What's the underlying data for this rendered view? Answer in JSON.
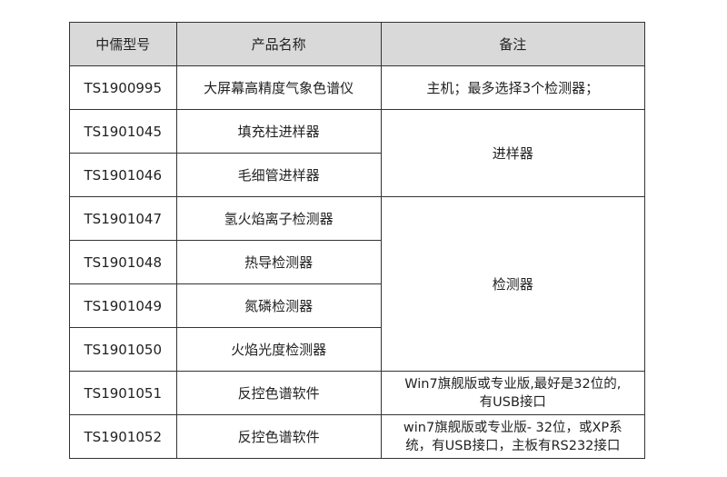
{
  "headers": [
    "中儒型号",
    "产品名称",
    "备注"
  ],
  "rows": [
    {
      "model": "TS1900995",
      "name": "大屏幕高精度气象色谱仪",
      "note": "主机；最多选择3个检测器；"
    },
    {
      "model": "TS1901045",
      "name": "填充柱进样器",
      "note": "进样器"
    },
    {
      "model": "TS1901046",
      "name": "毛细管进样器"
    },
    {
      "model": "TS1901047",
      "name": "氢火焰离子检测器",
      "note": "检测器"
    },
    {
      "model": "TS1901048",
      "name": "热导检测器"
    },
    {
      "model": "TS1901049",
      "name": "氮磷检测器"
    },
    {
      "model": "TS1901050",
      "name": "火焰光度检测器"
    },
    {
      "model": "TS1901051",
      "name": "反控色谱软件",
      "note_lines": [
        "Win7旗舰版或专业版,最好是32位的,",
        "有USB接口"
      ]
    },
    {
      "model": "TS1901052",
      "name": "反控色谱软件",
      "note_lines": [
        "win7旗舰版或专业版- 32位，或XP系",
        "统，有USB接口，主板有RS232接口"
      ]
    }
  ]
}
